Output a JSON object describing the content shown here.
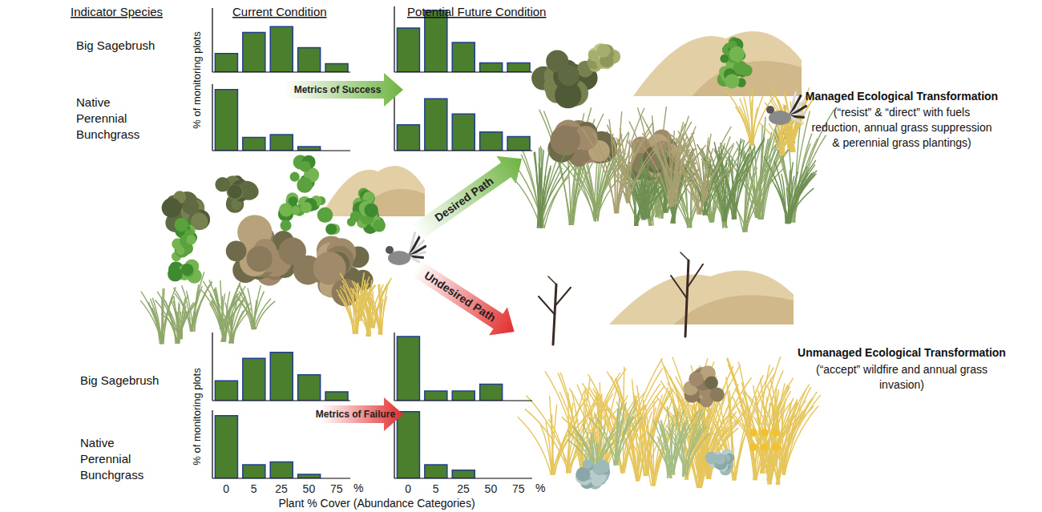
{
  "chart_data": [
    {
      "type": "bar",
      "categories": [
        "0",
        "5",
        "25",
        "50",
        "75"
      ],
      "values": [
        29,
        62,
        71,
        38,
        13
      ],
      "color": "#4b7f2e",
      "ylim": [
        0,
        100
      ],
      "yticks": [],
      "grid": false,
      "tick_labels": false
    },
    {
      "type": "bar",
      "categories": [
        "0",
        "5",
        "25",
        "50",
        "75"
      ],
      "values": [
        92,
        20,
        24,
        6,
        0
      ],
      "color": "#4b7f2e",
      "ylim": [
        0,
        100
      ],
      "yticks": [],
      "grid": false,
      "tick_labels": false
    },
    {
      "type": "bar",
      "categories": [
        "0",
        "5",
        "25",
        "50",
        "75"
      ],
      "values": [
        67,
        94,
        45,
        14,
        14
      ],
      "color": "#4b7f2e",
      "ylim": [
        0,
        100
      ],
      "yticks": [],
      "grid": false,
      "tick_labels": false
    },
    {
      "type": "bar",
      "categories": [
        "0",
        "5",
        "25",
        "50",
        "75"
      ],
      "values": [
        39,
        78,
        55,
        28,
        21
      ],
      "color": "#4b7f2e",
      "ylim": [
        0,
        100
      ],
      "yticks": [],
      "grid": false,
      "tick_labels": false
    },
    {
      "type": "bar",
      "categories": [
        "0",
        "5",
        "25",
        "50",
        "75"
      ],
      "values": [
        29,
        62,
        71,
        38,
        13
      ],
      "color": "#4b7f2e",
      "ylim": [
        0,
        100
      ],
      "yticks": [],
      "grid": false,
      "tick_labels": false
    },
    {
      "type": "bar",
      "categories": [
        "0",
        "5",
        "25",
        "50",
        "75"
      ],
      "values": [
        92,
        20,
        24,
        6,
        0
      ],
      "color": "#4b7f2e",
      "ylim": [
        0,
        100
      ],
      "yticks": [],
      "grid": false,
      "tick_labels": "x"
    },
    {
      "type": "bar",
      "categories": [
        "0",
        "5",
        "25",
        "50",
        "75"
      ],
      "values": [
        94,
        14,
        14,
        24,
        0
      ],
      "color": "#4b7f2e",
      "ylim": [
        0,
        100
      ],
      "yticks": [],
      "grid": false,
      "tick_labels": false
    },
    {
      "type": "bar",
      "categories": [
        "0",
        "5",
        "25",
        "50",
        "75"
      ],
      "values": [
        98,
        20,
        12,
        0,
        0
      ],
      "color": "#4b7f2e",
      "ylim": [
        0,
        100
      ],
      "yticks": [],
      "grid": false,
      "tick_labels": "x"
    }
  ],
  "diagram": {
    "headers": {
      "indicator": "Indicator Species",
      "current": "Current Condition",
      "future": "Potential Future Condition"
    },
    "species": {
      "sagebrush": "Big Sagebrush",
      "bunchgrass": [
        "Native",
        "Perennial",
        "Bunchgrass"
      ]
    },
    "y_label": "% of monitoring plots",
    "x_label": "Plant % Cover (Abundance Categories)",
    "x_unit": "%",
    "arrows": {
      "success": "Metrics of Success",
      "failure": "Metrics of Failure",
      "desired": "Desired Path",
      "undesired": "Undesired Path"
    },
    "outcomes": {
      "managed": {
        "title": "Managed Ecological Transformation",
        "text": [
          "(“resist” & “direct” with fuels",
          "reduction, annual grass suppression",
          "& perennial grass plantings)"
        ]
      },
      "unmanaged": {
        "title": "Unmanaged Ecological Transformation",
        "text": [
          "(“accept” wildfire and annual grass",
          "invasion)"
        ]
      }
    }
  }
}
